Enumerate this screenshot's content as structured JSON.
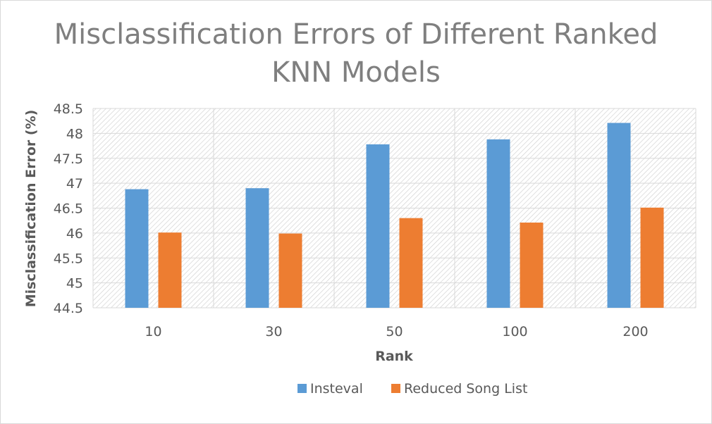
{
  "chart_data": {
    "type": "bar",
    "title_lines": [
      "Misclassification Errors of Different Ranked",
      "KNN Models"
    ],
    "xlabel": "Rank",
    "ylabel": "Misclassification Error (%)",
    "categories": [
      "10",
      "30",
      "50",
      "100",
      "200"
    ],
    "ylim": [
      44.5,
      48.5
    ],
    "yticks": [
      "44.5",
      "45",
      "45.5",
      "46",
      "46.5",
      "47",
      "47.5",
      "48",
      "48.5"
    ],
    "grid": true,
    "legend_position": "bottom",
    "series": [
      {
        "name": "Insteval",
        "color": "#5b9bd5",
        "values": [
          46.88,
          46.9,
          47.78,
          47.88,
          48.21
        ]
      },
      {
        "name": "Reduced Song List",
        "color": "#ed7d31",
        "values": [
          46.01,
          45.99,
          46.3,
          46.21,
          46.51
        ]
      }
    ]
  }
}
